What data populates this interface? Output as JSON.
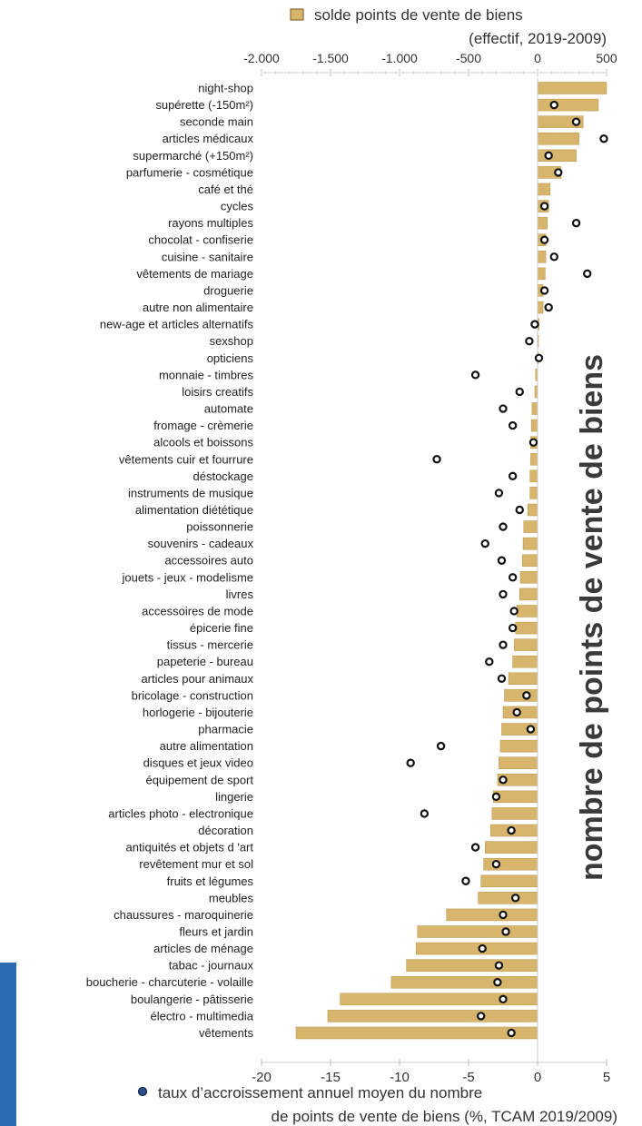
{
  "colors": {
    "bar": "#d7b56d",
    "bar_stroke": "#b8944a",
    "marker": "#111111",
    "accent": "#2a6db5"
  },
  "chart_data": {
    "type": "bar",
    "orientation": "horizontal",
    "side_title": "nombre de points de vente de biens",
    "top_axis": {
      "legend_line1": "solde points de vente de biens",
      "legend_line2": "(effectif, 2019-2009)",
      "range": [
        -2000,
        500
      ],
      "tick_values": [
        -2000,
        -1500,
        -1000,
        -500,
        0,
        500
      ],
      "tick_labels": [
        "-2.000",
        "-1.500",
        "-1.000",
        "-500",
        "0",
        "500"
      ]
    },
    "bottom_axis": {
      "legend_line1": "taux d’accroissement annuel moyen du nombre",
      "legend_line2": "de points de vente de biens  (%, TCAM 2019/2009)",
      "range": [
        -20,
        5
      ],
      "tick_values": [
        -20,
        -15,
        -10,
        -5,
        0,
        5
      ],
      "tick_labels": [
        "-20",
        "-15",
        "-10",
        "-5",
        "0",
        "5"
      ]
    },
    "categories": [
      "night-shop",
      "supérette (-150m²)",
      "seconde main",
      "articles médicaux",
      "supermarché (+150m²)",
      "parfumerie - cosmétique",
      "café et thé",
      "cycles",
      "rayons multiples",
      "chocolat - confiserie",
      "cuisine - sanitaire",
      "vêtements de mariage",
      "droguerie",
      "autre non alimentaire",
      "new-age et articles alternatifs",
      "sexshop",
      "opticiens",
      "monnaie - timbres",
      "loisirs creatifs",
      "automate",
      "fromage - crèmerie",
      "alcools et boissons",
      "vêtements cuir et fourrure",
      "déstockage",
      "instruments de musique",
      "alimentation diététique",
      "poissonnerie",
      "souvenirs - cadeaux",
      "accessoires auto",
      "jouets - jeux - modelisme",
      "livres",
      "accessoires de mode",
      "épicerie fine",
      "tissus - mercerie",
      "papeterie - bureau",
      "articles pour animaux",
      "bricolage - construction",
      "horlogerie - bijouterie",
      "pharmacie",
      "autre alimentation",
      "disques et jeux video",
      "équipement de sport",
      "lingerie",
      "articles photo - electronique",
      "décoration",
      "antiquités et objets d 'art",
      "revêtement mur et sol",
      "fruits et légumes",
      "meubles",
      "chaussures - maroquinerie",
      "fleurs et jardin",
      "articles de ménage",
      "tabac - journaux",
      "boucherie - charcuterie - volaille",
      "boulangerie - pâtisserie",
      "électro - multimedia",
      "vêtements"
    ],
    "series": [
      {
        "name": "solde points de vente de biens",
        "axis": "top",
        "mark": "bar",
        "values": [
          500,
          440,
          330,
          300,
          280,
          170,
          90,
          80,
          70,
          60,
          60,
          55,
          40,
          40,
          10,
          5,
          5,
          -15,
          -20,
          -40,
          -45,
          -50,
          -50,
          -55,
          -55,
          -70,
          -100,
          -105,
          -110,
          -125,
          -130,
          -150,
          -160,
          -170,
          -180,
          -210,
          -240,
          -250,
          -260,
          -270,
          -280,
          -290,
          -320,
          -330,
          -340,
          -380,
          -390,
          -410,
          -430,
          -660,
          -870,
          -880,
          -950,
          -1060,
          -1430,
          -1520,
          -1750
        ]
      },
      {
        "name": "taux d’accroissement annuel moyen du nombre de points de vente de biens",
        "axis": "bottom",
        "mark": "dot",
        "values": [
          null,
          1.2,
          2.8,
          4.8,
          0.8,
          1.5,
          null,
          0.5,
          2.8,
          0.5,
          1.2,
          3.6,
          0.5,
          0.8,
          -0.2,
          -0.6,
          0.1,
          -4.5,
          -1.3,
          -2.5,
          -1.8,
          -0.3,
          -7.3,
          -1.8,
          -2.8,
          -1.3,
          -2.5,
          -3.8,
          -2.6,
          -1.8,
          -2.5,
          -1.7,
          -1.8,
          -2.5,
          -3.5,
          -2.6,
          -0.8,
          -1.5,
          -0.5,
          -7.0,
          -9.2,
          -2.5,
          -3.0,
          -8.2,
          -1.9,
          -4.5,
          -3.0,
          -5.2,
          -1.6,
          -2.5,
          -2.3,
          -4.0,
          -2.8,
          -2.9,
          -2.5,
          -4.1,
          -1.9
        ]
      }
    ]
  }
}
